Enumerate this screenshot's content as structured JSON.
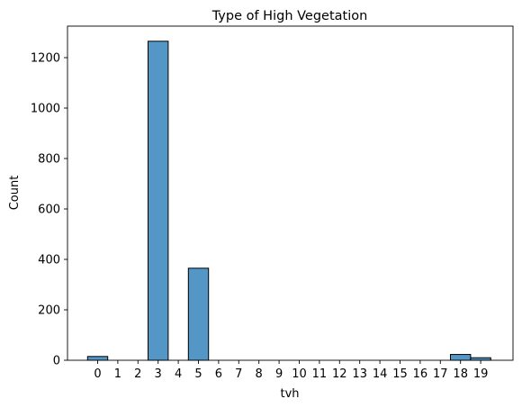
{
  "chart_data": {
    "type": "bar",
    "title": "Type of High Vegetation",
    "xlabel": "tvh",
    "ylabel": "Count",
    "categories": [
      "0",
      "1",
      "2",
      "3",
      "4",
      "5",
      "6",
      "7",
      "8",
      "9",
      "10",
      "11",
      "12",
      "13",
      "14",
      "15",
      "16",
      "17",
      "18",
      "19"
    ],
    "values": [
      15,
      0,
      0,
      1265,
      0,
      365,
      0,
      0,
      0,
      0,
      0,
      0,
      0,
      0,
      0,
      0,
      0,
      0,
      23,
      10
    ],
    "ylim": [
      0,
      1325
    ],
    "yticks": [
      0,
      200,
      400,
      600,
      800,
      1000,
      1200
    ],
    "grid": false,
    "bar_color": "#5497c6",
    "edge_color": "#000000"
  }
}
